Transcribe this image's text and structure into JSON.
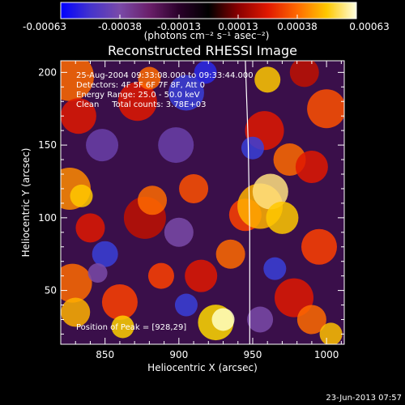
{
  "chart_data": {
    "type": "heatmap",
    "title": "Reconstructed RHESSI Image",
    "xlabel": "Heliocentric X (arcsec)",
    "ylabel": "Heliocentric Y (arcsec)",
    "xlim": [
      820,
      1012
    ],
    "ylim": [
      13,
      208
    ],
    "x_ticks": [
      850,
      900,
      950,
      1000
    ],
    "y_ticks": [
      50,
      100,
      150,
      200
    ],
    "colorbar": {
      "range": [
        -0.00063,
        0.00063
      ],
      "ticks": [
        "-0.00063",
        "-0.00038",
        "-0.00013",
        "0.00013",
        "0.00038",
        "0.00063"
      ],
      "units_label": "(photons cm⁻² s⁻¹ asec⁻²)",
      "colormap": [
        "#0000ff",
        "#4433cc",
        "#7a4aa8",
        "#6a1f6a",
        "#2a002a",
        "#000000",
        "#8a0000",
        "#e01800",
        "#ff6a00",
        "#ffc800",
        "#ffffe0"
      ]
    },
    "annotations": [
      "25-Aug-2004 09:33:08.000 to 09:33:44.000",
      "Detectors: 4F 5F 6F 7F 8F, Att 0",
      "Energy Range: 25.0 - 50.0 keV",
      "Clean     Total counts: 3.78E+03"
    ],
    "peak_label": "Position of Peak = [928,29]",
    "peak": [
      928,
      29
    ],
    "limb_curve": [
      [
        945,
        208
      ],
      [
        947,
        150
      ],
      [
        948,
        90
      ],
      [
        948,
        13
      ]
    ]
  },
  "footer": {
    "timestamp": "23-Jun-2013 07:57"
  }
}
